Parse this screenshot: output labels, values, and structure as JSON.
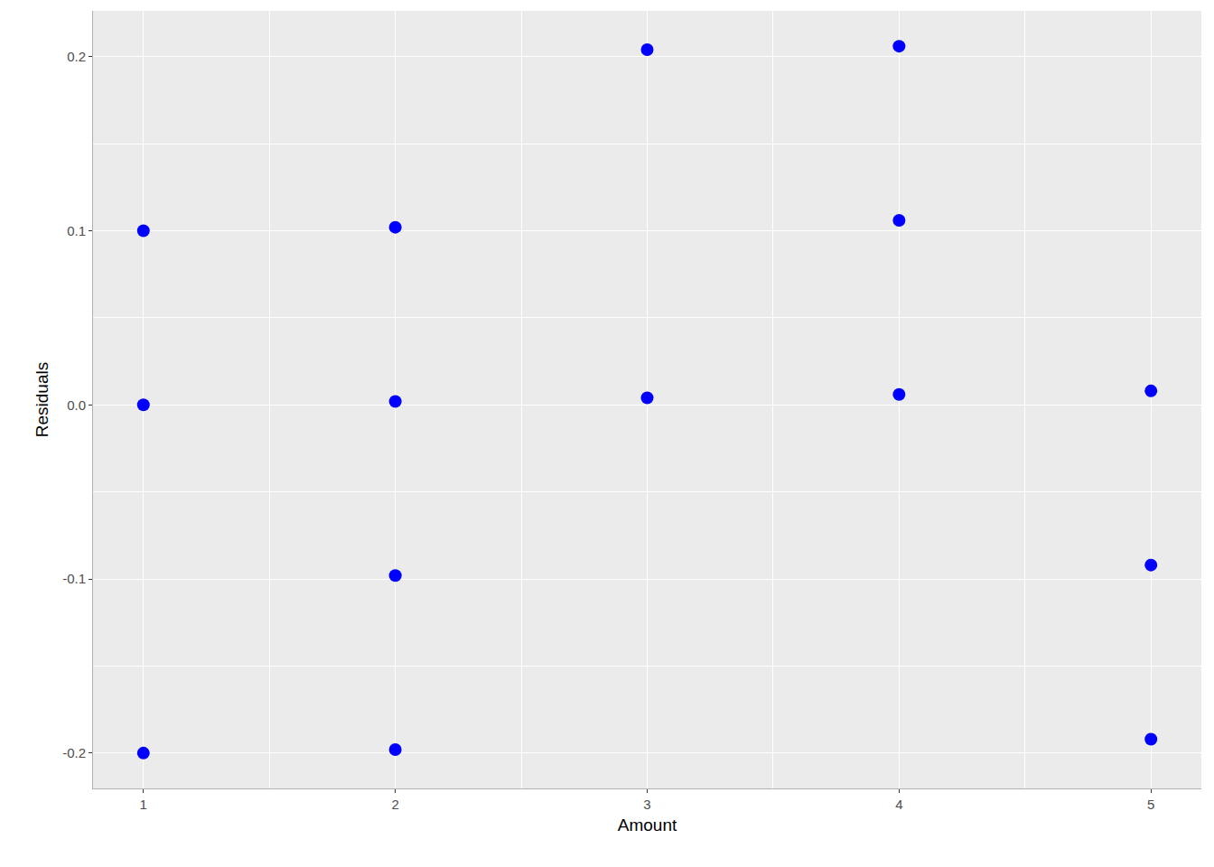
{
  "chart_data": {
    "type": "scatter",
    "x_label": "Amount",
    "y_label": "Residuals",
    "x": [
      1,
      1,
      1,
      2,
      2,
      2,
      2,
      3,
      3,
      4,
      4,
      4,
      5,
      5,
      5
    ],
    "values": [
      0.1,
      0.0,
      -0.2,
      0.102,
      0.002,
      -0.098,
      -0.198,
      0.204,
      0.004,
      0.206,
      0.106,
      0.006,
      0.008,
      -0.092,
      -0.192
    ],
    "color": "#0000ff",
    "marker": "circle",
    "xlim": [
      0.8,
      5.2
    ],
    "xticks": [
      1,
      2,
      3,
      4,
      5
    ],
    "ylim": [
      -0.2203,
      0.2263
    ],
    "yticks": [
      -0.2,
      -0.1,
      {
        "value": 0,
        "label": "0.0"
      },
      0.1,
      0.2
    ],
    "grid": true
  }
}
